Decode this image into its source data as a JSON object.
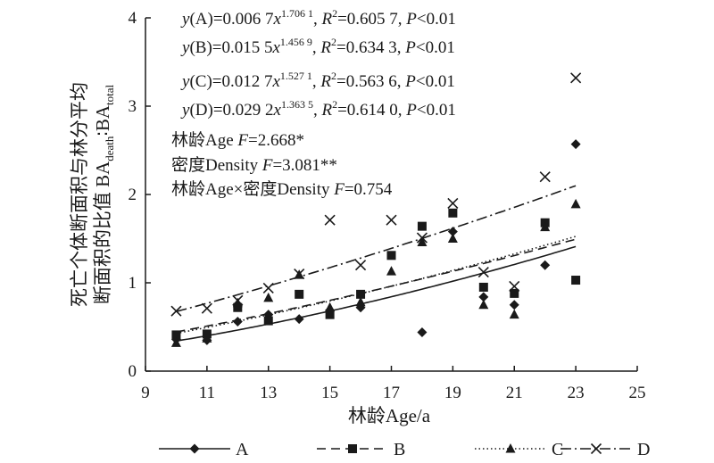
{
  "chart_data": {
    "type": "scatter",
    "xlabel": "林龄Age/a",
    "ylabel_line1": "死亡个体断面积与林分平均",
    "ylabel_line2_prefix": "断面积的比值 BA",
    "ylabel_sub1": "death",
    "ylabel_colon": "∶BA",
    "ylabel_sub2": "total",
    "xlim": [
      9,
      25
    ],
    "ylim": [
      0,
      4
    ],
    "xticks": [
      9,
      11,
      13,
      15,
      17,
      19,
      21,
      23,
      25
    ],
    "yticks": [
      0,
      1,
      2,
      3,
      4
    ],
    "equations": [
      {
        "label": "y(A)",
        "coef": "0.006 7",
        "exp": "1.706 1",
        "r2": "0.605 7",
        "p": "P<0.01"
      },
      {
        "label": "y(B)",
        "coef": "0.015 5",
        "exp": "1.456 9",
        "r2": "0.634 3",
        "p": "P<0.01"
      },
      {
        "label": "y(C)",
        "coef": "0.012 7",
        "exp": "1.527 1",
        "r2": "0.563 6",
        "p": "P<0.01"
      },
      {
        "label": "y(D)",
        "coef": "0.029 2",
        "exp": "1.363 5",
        "r2": "0.614 0",
        "p": "P<0.01"
      }
    ],
    "anova": [
      {
        "prefix": "林龄Age ",
        "f_label": "F",
        "value": "=2.668*"
      },
      {
        "prefix": "密度Density ",
        "f_label": "F",
        "value": "=3.081**"
      },
      {
        "prefix": "林龄Age×密度Density  ",
        "f_label": "F",
        "value": "=0.754"
      }
    ],
    "series": [
      {
        "name": "A",
        "marker": "diamond",
        "dash": "",
        "coef": 0.0067,
        "exp": 1.7061,
        "points": [
          [
            10,
            0.36
          ],
          [
            11,
            0.35
          ],
          [
            12,
            0.56
          ],
          [
            13,
            0.64
          ],
          [
            14,
            0.59
          ],
          [
            15,
            0.69
          ],
          [
            16,
            0.72
          ],
          [
            18,
            0.44
          ],
          [
            19,
            1.58
          ],
          [
            20,
            0.84
          ],
          [
            21,
            0.75
          ],
          [
            22,
            1.2
          ],
          [
            23,
            2.57
          ]
        ]
      },
      {
        "name": "B",
        "marker": "square",
        "dash": "10,6",
        "coef": 0.0155,
        "exp": 1.4569,
        "points": [
          [
            10,
            0.41
          ],
          [
            11,
            0.42
          ],
          [
            12,
            0.72
          ],
          [
            13,
            0.57
          ],
          [
            14,
            0.87
          ],
          [
            15,
            0.64
          ],
          [
            16,
            0.87
          ],
          [
            17,
            1.31
          ],
          [
            18,
            1.64
          ],
          [
            19,
            1.79
          ],
          [
            20,
            0.95
          ],
          [
            21,
            0.88
          ],
          [
            22,
            1.68
          ],
          [
            23,
            1.03
          ]
        ]
      },
      {
        "name": "C",
        "marker": "triangle",
        "dash": "1.5,3",
        "coef": 0.0127,
        "exp": 1.5271,
        "points": [
          [
            10,
            0.32
          ],
          [
            11,
            0.37
          ],
          [
            12,
            0.77
          ],
          [
            13,
            0.83
          ],
          [
            14,
            1.09
          ],
          [
            15,
            0.72
          ],
          [
            16,
            0.78
          ],
          [
            17,
            1.13
          ],
          [
            18,
            1.46
          ],
          [
            19,
            1.5
          ],
          [
            20,
            0.75
          ],
          [
            21,
            0.64
          ],
          [
            22,
            1.63
          ],
          [
            23,
            1.89
          ]
        ]
      },
      {
        "name": "D",
        "marker": "x",
        "dash": "12,4,2,4",
        "coef": 0.0292,
        "exp": 1.3635,
        "points": [
          [
            10,
            0.68
          ],
          [
            11,
            0.71
          ],
          [
            12,
            0.8
          ],
          [
            13,
            0.94
          ],
          [
            14,
            1.1
          ],
          [
            15,
            1.71
          ],
          [
            16,
            1.2
          ],
          [
            17,
            1.71
          ],
          [
            18,
            1.51
          ],
          [
            19,
            1.9
          ],
          [
            20,
            1.12
          ],
          [
            21,
            0.96
          ],
          [
            22,
            2.2
          ],
          [
            23,
            3.32
          ]
        ]
      }
    ]
  }
}
